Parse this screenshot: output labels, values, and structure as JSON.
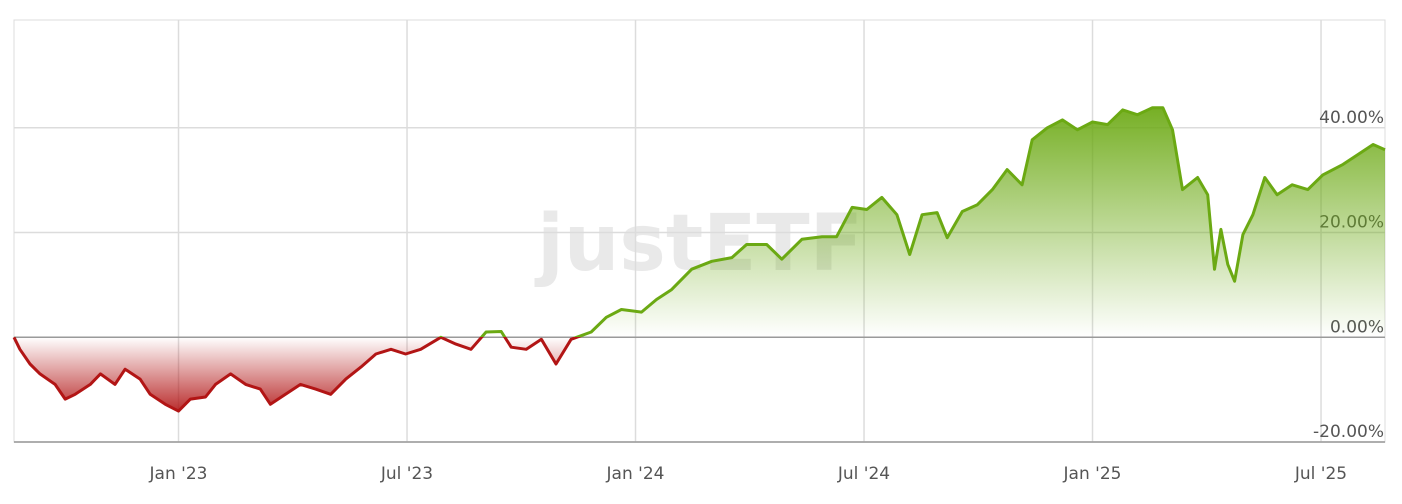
{
  "chart_data": {
    "type": "line",
    "watermark": "justETF",
    "x": [
      2022.64,
      2022.653,
      2022.675,
      2022.697,
      2022.73,
      2022.752,
      2022.774,
      2022.807,
      2022.829,
      2022.861,
      2022.883,
      2022.916,
      2022.938,
      2022.971,
      2023.0,
      2023.026,
      2023.059,
      2023.081,
      2023.114,
      2023.147,
      2023.179,
      2023.201,
      2023.234,
      2023.267,
      2023.3,
      2023.333,
      2023.366,
      2023.399,
      2023.432,
      2023.465,
      2023.497,
      2023.53,
      2023.574,
      2023.607,
      2023.64,
      2023.673,
      2023.706,
      2023.728,
      2023.761,
      2023.794,
      2023.826,
      2023.859,
      2023.903,
      2023.936,
      2023.969,
      2024.013,
      2024.046,
      2024.079,
      2024.123,
      2024.167,
      2024.211,
      2024.243,
      2024.287,
      2024.32,
      2024.364,
      2024.408,
      2024.44,
      2024.474,
      2024.506,
      2024.539,
      2024.572,
      2024.6,
      2024.627,
      2024.66,
      2024.682,
      2024.715,
      2024.748,
      2024.781,
      2024.813,
      2024.846,
      2024.868,
      2024.901,
      2024.934,
      2024.967,
      2025.0,
      2025.033,
      2025.066,
      2025.098,
      2025.131,
      2025.154,
      2025.175,
      2025.197,
      2025.23,
      2025.252,
      2025.267,
      2025.281,
      2025.296,
      2025.311,
      2025.329,
      2025.351,
      2025.377,
      2025.404,
      2025.437,
      2025.471,
      2025.504,
      2025.548,
      2025.581,
      2025.614,
      2025.64
    ],
    "values": [
      0,
      -2.3,
      -5.1,
      -7,
      -9,
      -11.8,
      -10.9,
      -9,
      -7,
      -9,
      -6.1,
      -8,
      -10.9,
      -12.8,
      -14.1,
      -11.8,
      -11.4,
      -9,
      -7,
      -9,
      -9.9,
      -12.8,
      -10.9,
      -9,
      -9.9,
      -10.9,
      -8,
      -5.7,
      -3.2,
      -2.3,
      -3.2,
      -2.3,
      0,
      -1.3,
      -2.3,
      1,
      1.1,
      -1.9,
      -2.3,
      -0.4,
      -5.1,
      -0.4,
      1,
      3.8,
      5.3,
      4.8,
      7.2,
      9.1,
      13,
      14.5,
      15.2,
      17.7,
      17.7,
      14.9,
      18.7,
      19.2,
      19.2,
      24.8,
      24.4,
      26.7,
      23.4,
      15.8,
      23.4,
      23.8,
      19,
      24,
      25.3,
      28.2,
      32,
      29.1,
      37.7,
      40,
      41.5,
      39.6,
      41.1,
      40.6,
      43.4,
      42.5,
      43.8,
      43.8,
      39.6,
      28.2,
      30.5,
      27.2,
      13,
      20.6,
      13.9,
      10.7,
      19.6,
      23.4,
      30.5,
      27.2,
      29.1,
      28.2,
      31,
      33,
      34.9,
      36.8,
      35.8
    ],
    "colors": {
      "positive": "#6ba913",
      "negative": "#b21515"
    },
    "xlim": [
      2022.64,
      2025.64
    ],
    "xticks": [
      {
        "value": 2023,
        "label": "Jan '23"
      },
      {
        "value": 2023.5,
        "label": "Jul '23"
      },
      {
        "value": 2024,
        "label": "Jan '24"
      },
      {
        "value": 2024.5,
        "label": "Jul '24"
      },
      {
        "value": 2025,
        "label": "Jan '25"
      },
      {
        "value": 2025.5,
        "label": "Jul '25"
      }
    ],
    "ylim": [
      -20,
      60
    ],
    "yticks": [
      {
        "value": -20,
        "label": "-20.00%"
      },
      {
        "value": 0,
        "label": "0.00%"
      },
      {
        "value": 20,
        "label": "20.00%"
      },
      {
        "value": 40,
        "label": "40.00%"
      }
    ],
    "grid": true
  }
}
